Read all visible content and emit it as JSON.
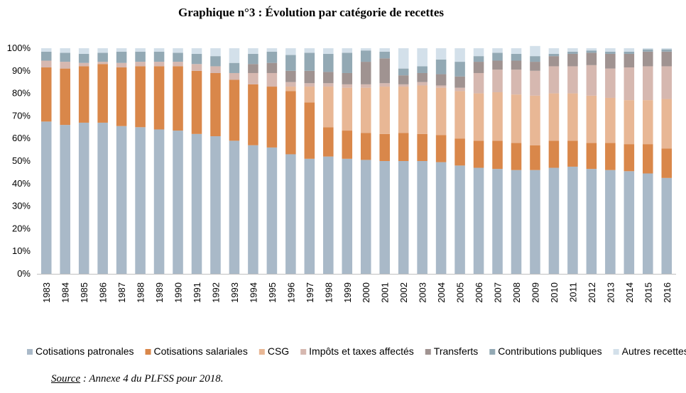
{
  "chart_data": {
    "type": "bar",
    "stacked": true,
    "normalized": true,
    "title": "Graphique n°3 : Évolution par catégorie de recettes",
    "categories": [
      "1983",
      "1984",
      "1985",
      "1986",
      "1987",
      "1988",
      "1989",
      "1990",
      "1991",
      "1992",
      "1993",
      "1994",
      "1995",
      "1996",
      "1997",
      "1998",
      "1999",
      "2000",
      "2001",
      "2002",
      "2003",
      "2004",
      "2005",
      "2006",
      "2007",
      "2008",
      "2009",
      "2010",
      "2011",
      "2012",
      "2013",
      "2014",
      "2015",
      "2016"
    ],
    "y_ticks": [
      "0%",
      "10%",
      "20%",
      "30%",
      "40%",
      "50%",
      "60%",
      "70%",
      "80%",
      "90%",
      "100%"
    ],
    "ylim": [
      0,
      100
    ],
    "grid": false,
    "legend_position": "bottom",
    "series": [
      {
        "name": "Cotisations patronales",
        "color": "#a9b9c8",
        "values": [
          67.5,
          66,
          67,
          67,
          65.5,
          65,
          64,
          63.5,
          62,
          61,
          59,
          57,
          56,
          53,
          51,
          52,
          51,
          50.5,
          50,
          50,
          50,
          49.5,
          48,
          47,
          46.5,
          46,
          46,
          47,
          47.5,
          46.5,
          46,
          45.5,
          44.5,
          42.5
        ]
      },
      {
        "name": "Cotisations salariales",
        "color": "#d9874a",
        "values": [
          24,
          25,
          25,
          26,
          26,
          27,
          28,
          28.5,
          28,
          28,
          27,
          27,
          27,
          28,
          25,
          13,
          12.5,
          12,
          12,
          12.5,
          12,
          12,
          12,
          12,
          12.5,
          12,
          11,
          12,
          11.5,
          11.5,
          12,
          12,
          13,
          13
        ]
      },
      {
        "name": "CSG",
        "color": "#e8b795",
        "values": [
          0,
          0,
          0,
          0,
          0,
          0,
          0,
          0,
          0,
          0,
          0,
          0,
          0,
          2,
          7,
          18,
          19,
          20,
          21,
          20.5,
          21.5,
          21,
          21,
          21,
          21.5,
          21.5,
          22,
          21,
          21,
          21,
          20,
          19.5,
          19.5,
          22
        ]
      },
      {
        "name": "Impôts et taxes affectés",
        "color": "#d6b8b0",
        "values": [
          3,
          3,
          1.5,
          1,
          2,
          2,
          2,
          2,
          3,
          3,
          3,
          5,
          6,
          2,
          1.5,
          1.5,
          1.5,
          1.5,
          1.5,
          1,
          1.5,
          1,
          1.5,
          9,
          10,
          11,
          11,
          12,
          12,
          13.5,
          13,
          14.5,
          15,
          14.5
        ]
      },
      {
        "name": "Transferts",
        "color": "#a09391",
        "values": [
          0,
          0,
          0,
          0,
          0,
          0,
          0,
          0,
          0,
          0,
          0,
          4,
          4.5,
          5,
          5.5,
          5,
          5,
          10,
          11,
          4,
          4,
          5,
          5,
          5,
          4,
          4,
          4,
          4.5,
          5.5,
          5.5,
          6.5,
          6,
          6.5,
          6.5
        ]
      },
      {
        "name": "Contributions publiques",
        "color": "#93a9b4",
        "values": [
          4,
          4,
          4,
          4,
          5,
          4.5,
          4.5,
          4,
          4.5,
          4.5,
          4.5,
          4.5,
          5,
          7,
          8,
          8,
          9,
          5,
          3,
          3,
          3,
          6.5,
          6.5,
          2.5,
          3.5,
          3,
          2.5,
          1,
          1,
          1,
          1,
          1,
          1,
          1
        ]
      },
      {
        "name": "Autres recettes",
        "color": "#d3e0ea",
        "values": [
          1.5,
          2,
          2.5,
          2,
          1.5,
          1.5,
          1.5,
          2,
          2.5,
          3.5,
          6.5,
          2.5,
          1.5,
          3,
          2,
          2.5,
          2,
          1,
          1.5,
          9,
          8,
          5,
          6,
          3.5,
          2,
          2.5,
          4.5,
          2.5,
          1.5,
          1,
          1.5,
          1.5,
          0.5,
          0.5
        ]
      }
    ]
  },
  "source": {
    "label": "Source",
    "text": " : Annexe 4 du PLFSS pour 2018."
  }
}
